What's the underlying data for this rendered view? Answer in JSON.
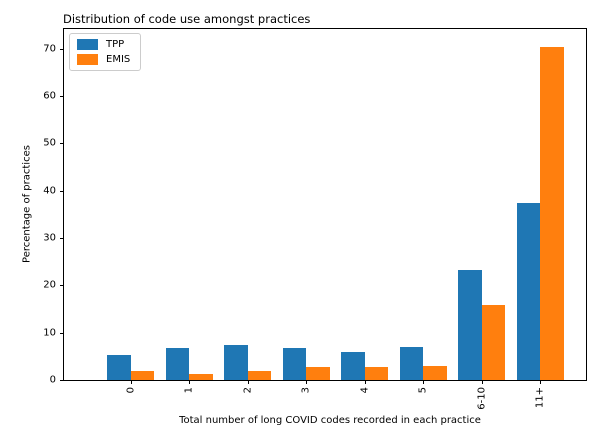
{
  "chart_data": {
    "type": "bar",
    "title": "Distribution of code use amongst practices",
    "xlabel": "Total number of long COVID codes recorded in each practice",
    "ylabel": "Percentage of practices",
    "categories": [
      "0",
      "1",
      "2",
      "3",
      "4",
      "5",
      "6-10",
      "11+"
    ],
    "series": [
      {
        "name": "TPP",
        "color": "#1f77b4",
        "values": [
          5.3,
          6.8,
          7.4,
          6.8,
          5.9,
          7.0,
          23.2,
          37.5
        ]
      },
      {
        "name": "EMIS",
        "color": "#ff7f0e",
        "values": [
          2.0,
          1.3,
          1.9,
          2.8,
          2.7,
          3.0,
          15.8,
          70.5
        ]
      }
    ],
    "yticks": [
      0,
      10,
      20,
      30,
      40,
      50,
      60,
      70
    ],
    "ylim": [
      0,
      74.2
    ],
    "legend_position": "upper left",
    "grid": false,
    "bar_group_width": 0.8,
    "background_color": "#ffffff",
    "spine_color": "#000000"
  }
}
